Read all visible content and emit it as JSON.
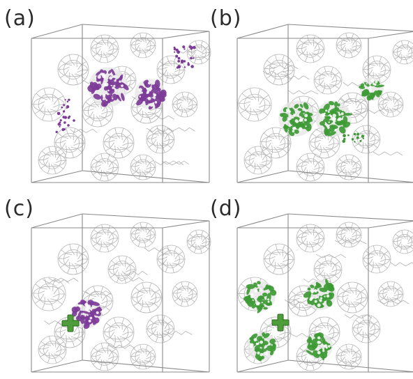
{
  "panels": [
    {
      "label": "(a)",
      "orbital_color": "#7d3c98",
      "has_cation_marker": false
    },
    {
      "label": "(b)",
      "orbital_color": "#3e9a35",
      "has_cation_marker": false
    },
    {
      "label": "(c)",
      "orbital_color": "#7d3c98",
      "has_cation_marker": true
    },
    {
      "label": "(d)",
      "orbital_color": "#3e9a35",
      "has_cation_marker": true
    }
  ],
  "colors": {
    "cube_edge": "#8a8a8a",
    "cage_line": "#b5b5b5",
    "purple": "#7d3c98",
    "green": "#3e9a35",
    "plus_marker": "#4e9d3a"
  },
  "icons": {
    "cube": "cube-outline-icon",
    "cage": "fullerene-cage-icon",
    "plus": "plus-icon"
  }
}
